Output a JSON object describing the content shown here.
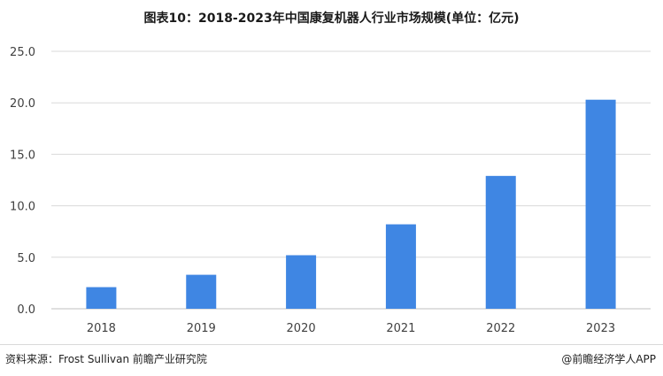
{
  "title": "图表10：2018-2023年中国康复机器人行业市场规模(单位：亿元)",
  "footer": {
    "source": "资料来源：Frost Sullivan 前瞻产业研究院",
    "brand": "@前瞻经济学人APP"
  },
  "colors": {
    "bar": "#3f86e3",
    "grid": "#d9d9d9",
    "axis": "#bfbfbf"
  },
  "chart_data": {
    "type": "bar",
    "title": "图表10：2018-2023年中国康复机器人行业市场规模(单位：亿元)",
    "categories": [
      "2018",
      "2019",
      "2020",
      "2021",
      "2022",
      "2023"
    ],
    "values": [
      2.1,
      3.3,
      5.2,
      8.2,
      12.9,
      20.3
    ],
    "ylim": [
      0,
      25
    ],
    "yticks": [
      "0.0",
      "5.0",
      "10.0",
      "15.0",
      "20.0",
      "25.0"
    ],
    "xlabel": "",
    "ylabel": "",
    "grid": true
  }
}
